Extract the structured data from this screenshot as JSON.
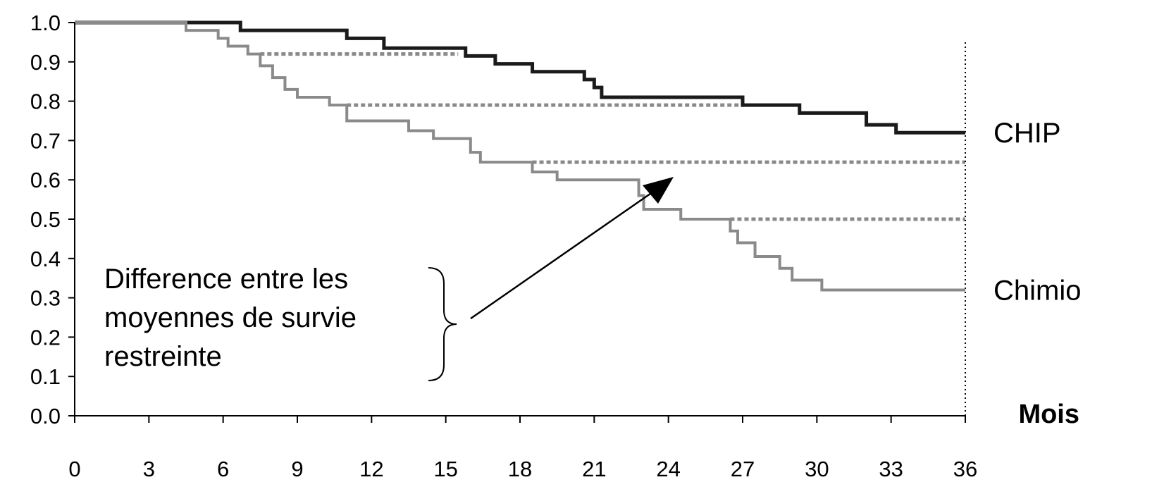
{
  "chart_data": {
    "type": "line",
    "subtype": "step",
    "title": "",
    "xlabel": "Mois",
    "ylabel": "",
    "xlim": [
      0,
      36
    ],
    "ylim": [
      0,
      1
    ],
    "xticks": [
      0,
      3,
      6,
      9,
      12,
      15,
      18,
      21,
      24,
      27,
      30,
      33,
      36
    ],
    "yticks": [
      "0.0",
      "0.1",
      "0.2",
      "0.3",
      "0.4",
      "0.5",
      "0.6",
      "0.7",
      "0.8",
      "0.9",
      "1.0"
    ],
    "grid": false,
    "legend": "none",
    "series": [
      {
        "name": "CHIP",
        "color": "#1a1a1a",
        "points": [
          [
            0,
            1.0
          ],
          [
            6.7,
            0.98
          ],
          [
            11.0,
            0.96
          ],
          [
            12.5,
            0.935
          ],
          [
            15.8,
            0.915
          ],
          [
            17.0,
            0.895
          ],
          [
            18.5,
            0.875
          ],
          [
            20.6,
            0.855
          ],
          [
            21.0,
            0.835
          ],
          [
            21.3,
            0.81
          ],
          [
            27.0,
            0.79
          ],
          [
            29.3,
            0.77
          ],
          [
            32.0,
            0.74
          ],
          [
            33.2,
            0.72
          ],
          [
            36.0,
            0.72
          ]
        ]
      },
      {
        "name": "Chimio",
        "color": "#8a8a8a",
        "points": [
          [
            0,
            1.0
          ],
          [
            4.5,
            0.98
          ],
          [
            5.8,
            0.96
          ],
          [
            6.2,
            0.94
          ],
          [
            7.0,
            0.92
          ],
          [
            7.5,
            0.89
          ],
          [
            8.0,
            0.86
          ],
          [
            8.5,
            0.83
          ],
          [
            9.0,
            0.81
          ],
          [
            10.3,
            0.79
          ],
          [
            11.0,
            0.75
          ],
          [
            13.5,
            0.725
          ],
          [
            14.5,
            0.705
          ],
          [
            16.0,
            0.67
          ],
          [
            16.4,
            0.645
          ],
          [
            18.5,
            0.62
          ],
          [
            19.5,
            0.6
          ],
          [
            22.8,
            0.56
          ],
          [
            23.0,
            0.525
          ],
          [
            24.5,
            0.5
          ],
          [
            26.5,
            0.47
          ],
          [
            26.8,
            0.44
          ],
          [
            27.5,
            0.405
          ],
          [
            28.5,
            0.375
          ],
          [
            29.0,
            0.345
          ],
          [
            30.2,
            0.32
          ],
          [
            36.0,
            0.32
          ]
        ]
      }
    ],
    "reference_lines": [
      {
        "y": 0.92,
        "x_from": 7.5,
        "x_to": 15.5
      },
      {
        "y": 0.79,
        "x_from": 11.0,
        "x_to": 27.0
      },
      {
        "y": 0.645,
        "x_from": 18.5,
        "x_to": 36.0
      },
      {
        "y": 0.5,
        "x_from": 26.5,
        "x_to": 36.0
      }
    ],
    "vertical_marker": {
      "x": 36
    },
    "annotation": {
      "lines": [
        "Difference entre les",
        "moyennes de survie",
        "restreinte"
      ]
    }
  }
}
